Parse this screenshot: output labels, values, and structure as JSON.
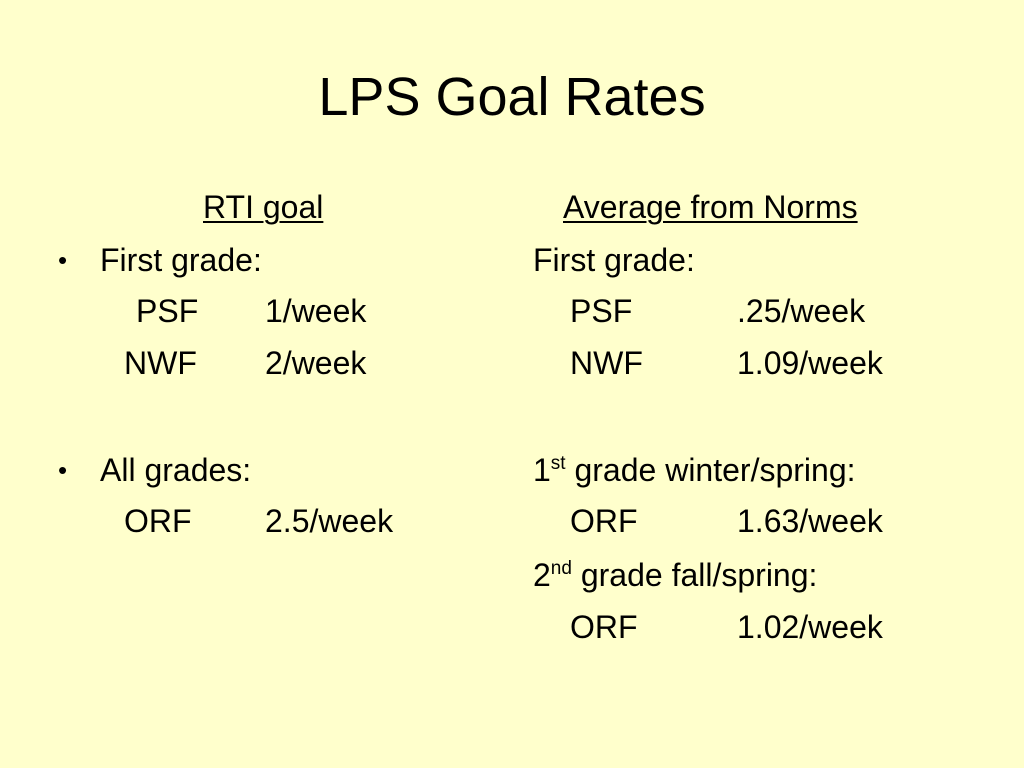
{
  "slide": {
    "title": "LPS Goal Rates",
    "background_color": "#ffffcc"
  },
  "left": {
    "heading": "RTI goal",
    "bullet_glyph": "•",
    "first_grade_label": "First grade:",
    "psf_label": "PSF",
    "psf_value": "1/week",
    "nwf_label": "NWF",
    "nwf_value": "2/week",
    "all_grades_label": "All grades:",
    "orf_label": "ORF",
    "orf_value": "2.5/week"
  },
  "right": {
    "heading": "Average from Norms",
    "first_grade_label": "First grade:",
    "psf_label": "PSF",
    "psf_value": ".25/week",
    "nwf_label": "NWF",
    "nwf_value": "1.09/week",
    "first_grade_ws_num": "1",
    "first_grade_ws_sup": "st",
    "first_grade_ws_label": " grade winter/spring:",
    "orf1_label": "ORF",
    "orf1_value": "1.63/week",
    "second_grade_num": "2",
    "second_grade_sup": "nd",
    "second_grade_label": " grade fall/spring:",
    "orf2_label": "ORF",
    "orf2_value": "1.02/week"
  }
}
